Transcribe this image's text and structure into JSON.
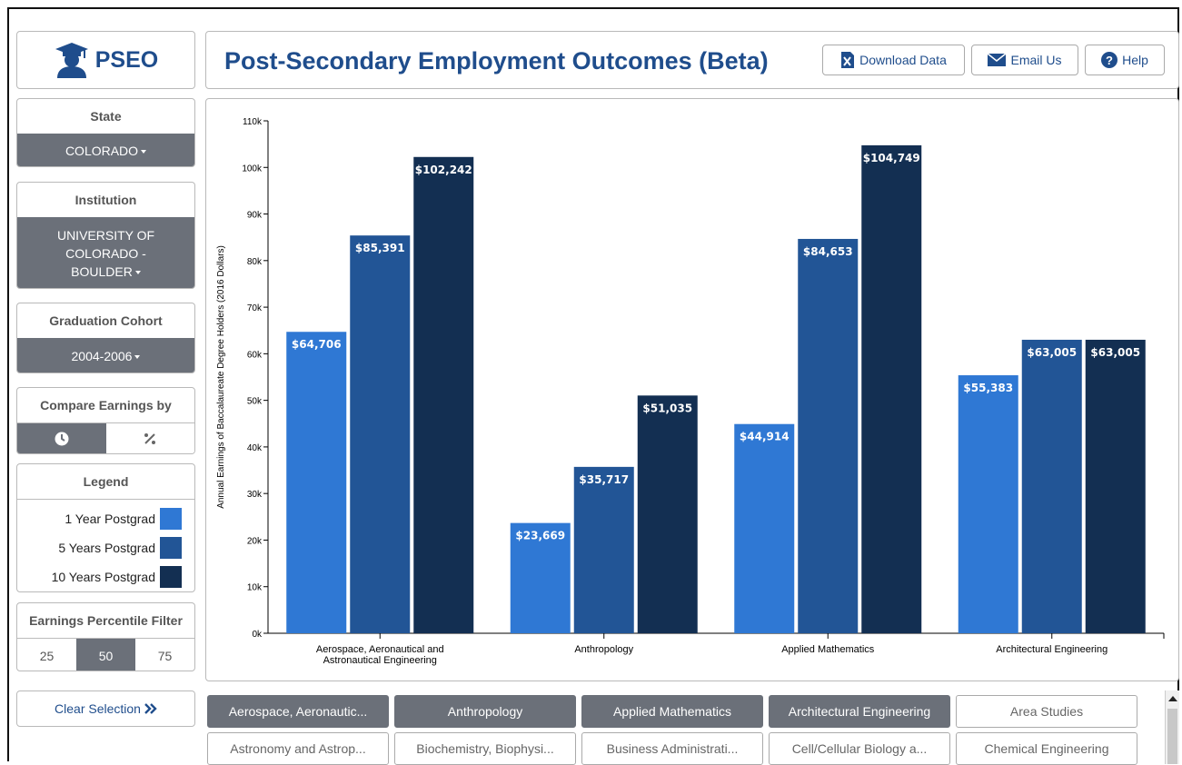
{
  "app": {
    "logo_text": "PSEO",
    "title": "Post-Secondary Employment Outcomes (Beta)"
  },
  "header_buttons": {
    "download": "Download Data",
    "email": "Email Us",
    "help": "Help"
  },
  "filters": {
    "state": {
      "label": "State",
      "value": "COLORADO"
    },
    "institution": {
      "label": "Institution",
      "value_lines": [
        "UNIVERSITY OF",
        "COLORADO -",
        "BOULDER"
      ]
    },
    "cohort": {
      "label": "Graduation Cohort",
      "value": "2004-2006"
    },
    "compare": {
      "label": "Compare Earnings by",
      "time_icon": "clock-icon",
      "percent_icon": "percent-icon"
    },
    "percentile": {
      "label": "Earnings Percentile Filter",
      "options": [
        "25",
        "50",
        "75"
      ],
      "selected": "50"
    }
  },
  "legend": {
    "label": "Legend",
    "items": [
      {
        "name": "1 Year Postgrad",
        "color": "#2f78d4"
      },
      {
        "name": "5 Years Postgrad",
        "color": "#225596"
      },
      {
        "name": "10 Years Postgrad",
        "color": "#132f52"
      }
    ]
  },
  "clear_selection": "Clear Selection",
  "chart_data": {
    "type": "bar",
    "ylabel": "Annual Earnings of Baccalaureate Degree Holders (2016 Dollars)",
    "ylim": [
      0,
      110000
    ],
    "yticks": [
      0,
      10000,
      20000,
      30000,
      40000,
      50000,
      60000,
      70000,
      80000,
      90000,
      100000,
      110000
    ],
    "ytick_labels": [
      "0k",
      "10k",
      "20k",
      "30k",
      "40k",
      "50k",
      "60k",
      "70k",
      "80k",
      "90k",
      "100k",
      "110k"
    ],
    "categories": [
      [
        "Aerospace, Aeronautical and",
        "Astronautical Engineering"
      ],
      [
        "Anthropology"
      ],
      [
        "Applied Mathematics"
      ],
      [
        "Architectural Engineering"
      ]
    ],
    "series": [
      {
        "name": "1 Year Postgrad",
        "color": "#2f78d4",
        "values": [
          64706,
          23669,
          44914,
          55383
        ],
        "labels": [
          "$64,706",
          "$23,669",
          "$44,914",
          "$55,383"
        ]
      },
      {
        "name": "5 Years Postgrad",
        "color": "#225596",
        "values": [
          85391,
          35717,
          84653,
          63005
        ],
        "labels": [
          "$85,391",
          "$35,717",
          "$84,653",
          "$63,005"
        ]
      },
      {
        "name": "10 Years Postgrad",
        "color": "#132f52",
        "values": [
          102242,
          51035,
          104749,
          63005
        ],
        "labels": [
          "$102,242",
          "$51,035",
          "$104,749",
          "$63,005"
        ]
      }
    ],
    "grid": false
  },
  "majors": {
    "row1": [
      {
        "label": "Aerospace, Aeronautic...",
        "selected": true
      },
      {
        "label": "Anthropology",
        "selected": true
      },
      {
        "label": "Applied Mathematics",
        "selected": true
      },
      {
        "label": "Architectural Engineering",
        "selected": true
      },
      {
        "label": "Area Studies",
        "selected": false
      }
    ],
    "row2": [
      {
        "label": "Astronomy and Astrop...",
        "selected": false
      },
      {
        "label": "Biochemistry, Biophysi...",
        "selected": false
      },
      {
        "label": "Business Administrati...",
        "selected": false
      },
      {
        "label": "Cell/Cellular Biology a...",
        "selected": false
      },
      {
        "label": "Chemical Engineering",
        "selected": false
      }
    ]
  }
}
